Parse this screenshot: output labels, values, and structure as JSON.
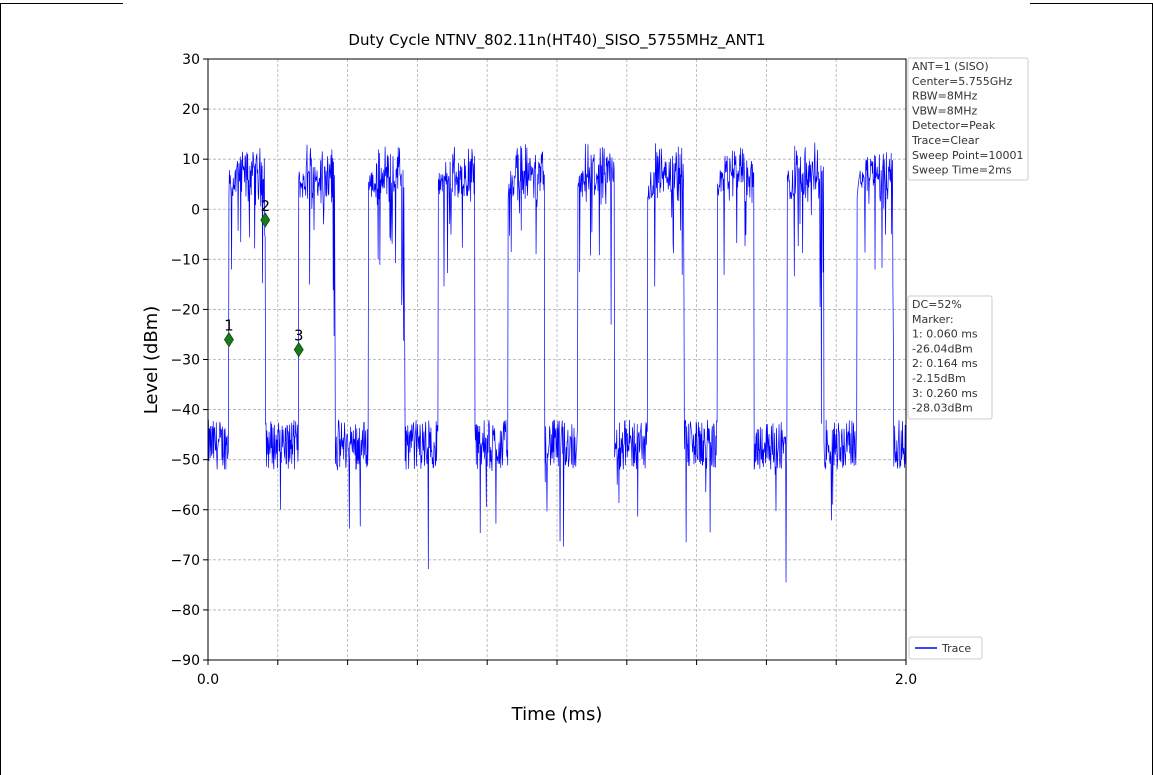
{
  "chart_data": {
    "type": "line",
    "title": "Duty Cycle NTNV_802.11n(HT40)_SISO_5755MHz_ANT1",
    "xlabel": "Time (ms)",
    "ylabel": "Level (dBm)",
    "xlim": [
      0.0,
      2.0
    ],
    "ylim": [
      -90,
      30
    ],
    "x_tick_labels": [
      "0.0",
      "2.0"
    ],
    "x_minor_ticks": [
      0.2,
      0.4,
      0.6,
      0.8,
      1.0,
      1.2,
      1.4,
      1.6,
      1.8
    ],
    "y_ticks": [
      30,
      20,
      10,
      0,
      -10,
      -20,
      -30,
      -40,
      -50,
      -60,
      -70,
      -80,
      -90
    ],
    "grid": true,
    "legend": {
      "placement": "bottom-right",
      "entries": [
        "Trace"
      ]
    },
    "series": [
      {
        "name": "Trace",
        "color": "#0000ff",
        "period_ms": 0.2,
        "on_duration_ms": 0.104,
        "on_level_dbm": 5,
        "off_level_dbm": -47,
        "burst_starts_ms": [
          0.06,
          0.26,
          0.46,
          0.66,
          0.86,
          1.06,
          1.26,
          1.46,
          1.66,
          1.86
        ],
        "peak_dbm": 14,
        "min_dbm": -81
      }
    ],
    "markers": [
      {
        "label": "1",
        "x": 0.06,
        "y": -26.04
      },
      {
        "label": "2",
        "x": 0.164,
        "y": -2.15
      },
      {
        "label": "3",
        "x": 0.26,
        "y": -28.03
      }
    ],
    "annotations": {
      "settings": [
        "ANT=1 (SISO)",
        "Center=5.755GHz",
        "RBW=8MHz",
        "VBW=8MHz",
        "Detector=Peak",
        "Trace=Clear",
        "Sweep Point=10001",
        "Sweep Time=2ms"
      ],
      "results": [
        "DC=52%",
        "Marker:",
        "1: 0.060 ms",
        "   -26.04dBm",
        "2: 0.164 ms",
        "   -2.15dBm",
        "3: 0.260 ms",
        "   -28.03dBm"
      ]
    }
  }
}
